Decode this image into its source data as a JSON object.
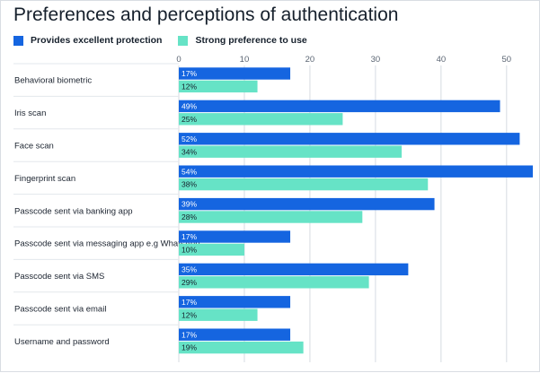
{
  "title": "Preferences and perceptions of authentication",
  "colors": {
    "protection": "#1565e0",
    "preference": "#66e3c6",
    "grid": "#d6dbe2",
    "row_line": "#e3e7ec"
  },
  "chart_data": {
    "type": "bar",
    "orientation": "horizontal",
    "title": "Preferences and perceptions of authentication",
    "xlabel": "",
    "ylabel": "",
    "xlim": [
      0,
      54
    ],
    "ticks": [
      0,
      10,
      20,
      30,
      40,
      50
    ],
    "grid": true,
    "legend_position": "top-left",
    "categories": [
      "Behavioral biometric",
      "Iris scan",
      "Face scan",
      "Fingerprint scan",
      "Passcode sent via banking app",
      "Passcode sent via messaging app e.g WhatsApp",
      "Passcode sent via SMS",
      "Passcode sent via email",
      "Username and password"
    ],
    "series": [
      {
        "name": "Provides excellent protection",
        "values": [
          17,
          49,
          52,
          54,
          39,
          17,
          35,
          17,
          17
        ],
        "labels": [
          "17%",
          "49%",
          "52%",
          "54%",
          "39%",
          "17%",
          "35%",
          "17%",
          "17%"
        ]
      },
      {
        "name": "Strong preference to use",
        "values": [
          12,
          25,
          34,
          38,
          28,
          10,
          29,
          12,
          19
        ],
        "labels": [
          "12%",
          "25%",
          "34%",
          "38%",
          "28%",
          "10%",
          "29%",
          "12%",
          "19%"
        ]
      }
    ]
  }
}
